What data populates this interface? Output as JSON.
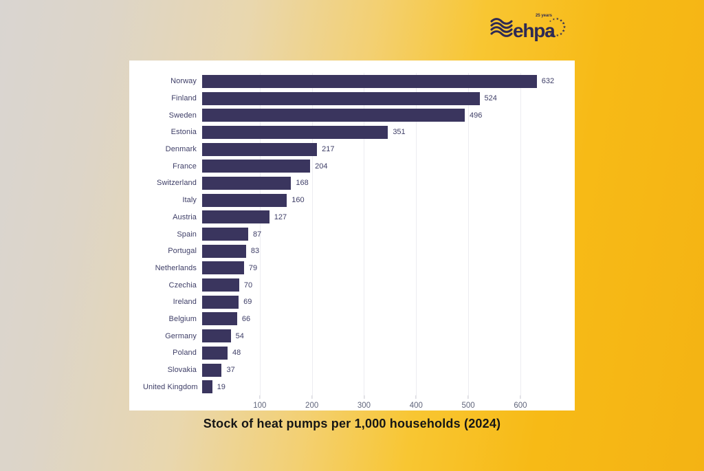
{
  "background": {
    "left_color": "#d9d5d1",
    "right_color": "#f4b314"
  },
  "logo": {
    "brand": "ehpa",
    "tagline": "25 years",
    "color": "#2e2a54"
  },
  "title": "Stock of heat pumps per 1,000 households (2024)",
  "chart_data": {
    "type": "bar",
    "orientation": "horizontal",
    "title": "Stock of heat pumps per 1,000 households (2024)",
    "categories": [
      "Norway",
      "Finland",
      "Sweden",
      "Estonia",
      "Denmark",
      "France",
      "Switzerland",
      "Italy",
      "Austria",
      "Spain",
      "Portugal",
      "Netherlands",
      "Czechia",
      "Ireland",
      "Belgium",
      "Germany",
      "Poland",
      "Slovakia",
      "United Kingdom"
    ],
    "values": [
      632,
      524,
      496,
      351,
      217,
      204,
      168,
      160,
      127,
      87,
      83,
      79,
      70,
      69,
      66,
      54,
      48,
      37,
      19
    ],
    "xlabel": "",
    "ylabel": "",
    "xlim": [
      0,
      670
    ],
    "xticks": [
      100,
      200,
      300,
      400,
      500,
      600
    ],
    "grid": true,
    "value_labels": true,
    "bar_color": "#3a355e",
    "label_color": "#3d3d66",
    "tick_color": "#60657b",
    "gridline_color": "#ececf1",
    "panel_color": "#ffffff",
    "legend": "none"
  }
}
